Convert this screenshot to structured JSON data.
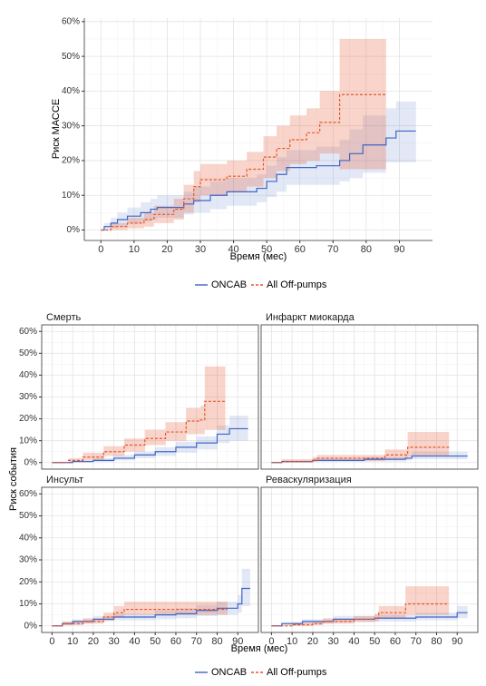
{
  "chart_data": [
    {
      "type": "step",
      "y_label": "Риск МАССЕ",
      "x_label": "Время (мес)",
      "xlim": [
        -5,
        100
      ],
      "ylim": [
        -3,
        61
      ],
      "xticks": [
        0,
        10,
        20,
        30,
        40,
        50,
        60,
        70,
        80,
        90
      ],
      "yticks": [
        {
          "value": 0,
          "label": "0%"
        },
        {
          "value": 10,
          "label": "10%"
        },
        {
          "value": 20,
          "label": "20%"
        },
        {
          "value": 30,
          "label": "30%"
        },
        {
          "value": 40,
          "label": "40%"
        },
        {
          "value": 50,
          "label": "50%"
        },
        {
          "value": 60,
          "label": "60%"
        }
      ],
      "grid": true,
      "series": [
        {
          "name": "ONCAB",
          "color": "#3f64c4",
          "x": [
            0,
            1,
            3,
            5,
            8,
            12,
            15,
            17,
            25,
            28,
            33,
            38,
            47,
            50,
            53,
            56,
            65,
            72,
            75,
            79,
            86,
            89,
            95
          ],
          "values": [
            0,
            1,
            2,
            3,
            4,
            5,
            6,
            6.5,
            7.5,
            8.5,
            10,
            11,
            12,
            14,
            16,
            18,
            18.5,
            20,
            22,
            24.5,
            26.5,
            28.5,
            28.5
          ],
          "lower": [
            0,
            0,
            0.5,
            1,
            2,
            2.5,
            3,
            3.5,
            4.5,
            5,
            6,
            7,
            8,
            9.5,
            11,
            13,
            13,
            14,
            15,
            16.5,
            19.5,
            19.5,
            19.5
          ],
          "upper": [
            0,
            2,
            3.5,
            5,
            6.5,
            8,
            9,
            10,
            11,
            12.5,
            14,
            15,
            16,
            18.5,
            21,
            23,
            24,
            26,
            29,
            33,
            35,
            37,
            37
          ]
        },
        {
          "name": "All Off-pumps",
          "color": "#e8542a",
          "x": [
            0,
            3,
            8,
            13,
            16,
            22,
            25,
            28,
            30,
            38,
            44,
            49,
            53,
            57,
            62,
            66,
            72,
            86
          ],
          "values": [
            0,
            1,
            2,
            3,
            4.5,
            6,
            9,
            12.5,
            14.5,
            15.5,
            17.5,
            21,
            23.5,
            26,
            28,
            31,
            39,
            39
          ],
          "lower": [
            0,
            0,
            0.5,
            1,
            2,
            3,
            5,
            8,
            10,
            11,
            12.5,
            15,
            17,
            19,
            20,
            22,
            17.5,
            17.5
          ],
          "upper": [
            0,
            2,
            3.5,
            5,
            7,
            9,
            13,
            17,
            19,
            20,
            22.5,
            27,
            30,
            33,
            35,
            40,
            55,
            55
          ]
        }
      ]
    },
    {
      "type": "step",
      "title": "Смерть",
      "y_label": "Риск события",
      "x_label": "Время (мес)",
      "xlim": [
        -5,
        100
      ],
      "ylim": [
        -3,
        63
      ],
      "xticks": [
        0,
        10,
        20,
        30,
        40,
        50,
        60,
        70,
        80,
        90
      ],
      "yticks": [
        {
          "value": 0,
          "label": "0%"
        },
        {
          "value": 10,
          "label": "10%"
        },
        {
          "value": 20,
          "label": "20%"
        },
        {
          "value": 30,
          "label": "30%"
        },
        {
          "value": 40,
          "label": "40%"
        },
        {
          "value": 50,
          "label": "50%"
        },
        {
          "value": 60,
          "label": "60%"
        }
      ],
      "grid": true,
      "series": [
        {
          "name": "ONCAB",
          "color": "#3f64c4",
          "x": [
            0,
            10,
            20,
            30,
            40,
            50,
            60,
            70,
            80,
            86,
            95
          ],
          "values": [
            0,
            0.5,
            1,
            2,
            3.5,
            5,
            7,
            9,
            13,
            15.5,
            15.5
          ],
          "lower": [
            0,
            0,
            0.3,
            1,
            2,
            3,
            4.5,
            6,
            9,
            10,
            10
          ],
          "upper": [
            0,
            1,
            2,
            3.5,
            5,
            7,
            9.5,
            12,
            17,
            21.5,
            21.5
          ]
        },
        {
          "name": "All Off-pumps",
          "color": "#e8542a",
          "x": [
            0,
            8,
            15,
            25,
            35,
            45,
            55,
            65,
            72,
            74,
            84
          ],
          "values": [
            0,
            1,
            2.5,
            5,
            8,
            11,
            14,
            19,
            19.5,
            28,
            28
          ],
          "lower": [
            0,
            0.3,
            1,
            3,
            5,
            8,
            10,
            13,
            13,
            15,
            15
          ],
          "upper": [
            0,
            2,
            4.5,
            7.5,
            11,
            15,
            18.5,
            25,
            26,
            44,
            44
          ]
        }
      ]
    },
    {
      "type": "step",
      "title": "Инфаркт миокарда",
      "xlim": [
        -5,
        100
      ],
      "ylim": [
        -3,
        63
      ],
      "xticks": [
        0,
        10,
        20,
        30,
        40,
        50,
        60,
        70,
        80,
        90
      ],
      "yticks": [
        0,
        10,
        20,
        30,
        40,
        50,
        60
      ],
      "grid": true,
      "series": [
        {
          "color": "#3f64c4",
          "x": [
            0,
            5,
            20,
            45,
            65,
            68,
            95
          ],
          "values": [
            0,
            0.5,
            1,
            1.5,
            2,
            3,
            3
          ],
          "lower": [
            0,
            0,
            0.3,
            0.5,
            1,
            1.5,
            1.5
          ],
          "upper": [
            0,
            1,
            2,
            2.5,
            3.5,
            5,
            5
          ]
        },
        {
          "color": "#e8542a",
          "x": [
            0,
            5,
            20,
            22,
            55,
            66,
            86
          ],
          "values": [
            0,
            0.5,
            1,
            2,
            3.5,
            7,
            7
          ],
          "lower": [
            0,
            0,
            0.3,
            0.8,
            1.5,
            3,
            3
          ],
          "upper": [
            0,
            1.5,
            2.5,
            3.5,
            6,
            14,
            14
          ]
        }
      ]
    },
    {
      "type": "step",
      "title": "Инсульт",
      "xlim": [
        -5,
        100
      ],
      "ylim": [
        -3,
        63
      ],
      "xticks": [
        0,
        10,
        20,
        30,
        40,
        50,
        60,
        70,
        80,
        90
      ],
      "yticks": [
        {
          "value": 0,
          "label": "0%"
        },
        {
          "value": 10,
          "label": "10%"
        },
        {
          "value": 20,
          "label": "20%"
        },
        {
          "value": 30,
          "label": "30%"
        },
        {
          "value": 40,
          "label": "40%"
        },
        {
          "value": 50,
          "label": "50%"
        },
        {
          "value": 60,
          "label": "60%"
        }
      ],
      "grid": true,
      "series": [
        {
          "color": "#3f64c4",
          "x": [
            0,
            5,
            10,
            20,
            30,
            50,
            60,
            70,
            80,
            90,
            92,
            96
          ],
          "values": [
            0,
            1,
            2,
            3,
            4,
            5,
            5.5,
            7,
            8,
            10,
            17,
            17
          ],
          "lower": [
            0,
            0.3,
            1,
            2,
            2.5,
            3,
            3.5,
            4.5,
            5,
            6,
            9,
            9
          ],
          "upper": [
            0,
            1.8,
            3,
            4.5,
            5.5,
            7,
            8,
            9.5,
            11,
            14,
            26,
            26
          ]
        },
        {
          "color": "#e8542a",
          "x": [
            0,
            5,
            15,
            25,
            30,
            35,
            85
          ],
          "values": [
            0,
            1,
            2,
            4,
            6,
            7.5,
            7.5
          ],
          "lower": [
            0,
            0.3,
            1,
            2.5,
            4,
            5,
            5
          ],
          "upper": [
            0,
            2,
            3.5,
            6,
            9,
            11,
            11
          ]
        }
      ]
    },
    {
      "type": "step",
      "title": "Реваскуляризация",
      "xlim": [
        -5,
        100
      ],
      "ylim": [
        -3,
        63
      ],
      "xticks": [
        0,
        10,
        20,
        30,
        40,
        50,
        60,
        70,
        80,
        90
      ],
      "yticks": [
        0,
        10,
        20,
        30,
        40,
        50,
        60
      ],
      "grid": true,
      "series": [
        {
          "color": "#3f64c4",
          "x": [
            0,
            5,
            15,
            30,
            50,
            70,
            90,
            95
          ],
          "values": [
            0,
            1,
            2,
            3,
            3.5,
            4,
            6,
            6
          ],
          "lower": [
            0,
            0.3,
            1,
            1.8,
            2,
            2.5,
            3.5,
            3.5
          ],
          "upper": [
            0,
            1.8,
            3,
            4.5,
            5,
            6,
            9,
            9
          ]
        },
        {
          "color": "#e8542a",
          "x": [
            0,
            10,
            20,
            25,
            40,
            50,
            52,
            65,
            86
          ],
          "values": [
            0,
            0.5,
            1,
            2,
            3,
            3.5,
            6,
            10,
            10
          ],
          "lower": [
            0,
            0,
            0.3,
            1,
            1.8,
            2,
            3.5,
            5,
            5
          ],
          "upper": [
            0,
            1.5,
            2,
            3.5,
            4.5,
            5.5,
            9,
            18,
            18
          ]
        }
      ]
    }
  ]
}
